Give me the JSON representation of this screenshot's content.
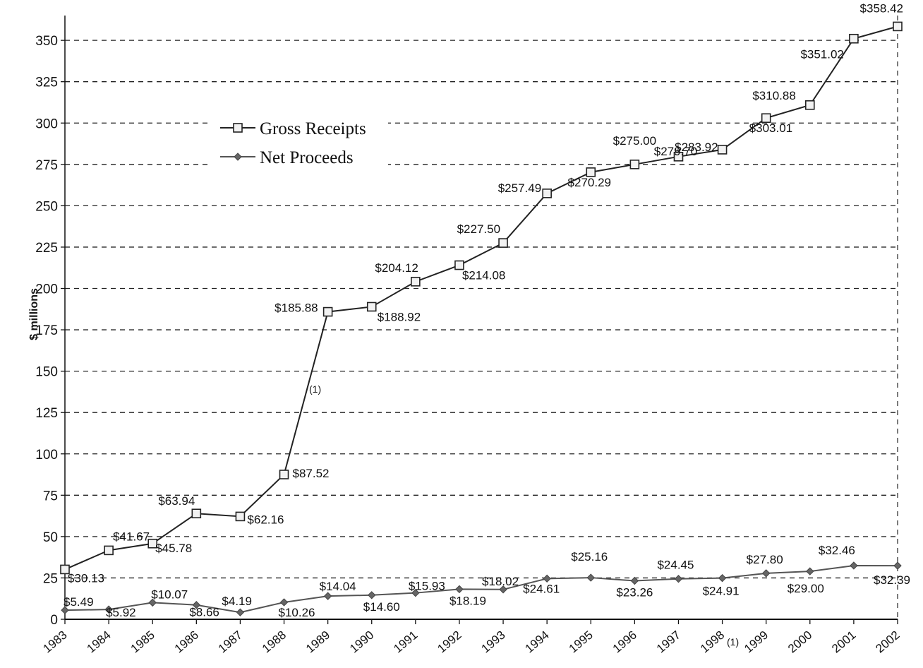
{
  "chart_data": {
    "type": "line",
    "ylabel": "$ millions",
    "ylim": [
      0,
      365
    ],
    "yticks": [
      "0",
      "25",
      "50",
      "75",
      "100",
      "125",
      "150",
      "175",
      "200",
      "225",
      "250",
      "275",
      "300",
      "325",
      "350"
    ],
    "grid": "horizontal dashed",
    "legend_position": "upper-left",
    "categories": [
      "1983",
      "1984",
      "1985",
      "1986",
      "1987",
      "1988",
      "1989",
      "1990",
      "1991",
      "1992",
      "1993",
      "1994",
      "1995",
      "1996",
      "1997",
      "1998",
      "1999",
      "2000",
      "2001",
      "2002"
    ],
    "series": [
      {
        "name": "Gross Receipts",
        "color": "#222222",
        "marker": "square",
        "values": [
          30.13,
          41.67,
          45.78,
          63.94,
          62.16,
          87.52,
          185.88,
          188.92,
          204.12,
          214.08,
          227.5,
          257.49,
          270.29,
          275.0,
          279.7,
          283.92,
          303.01,
          310.88,
          351.02,
          358.42
        ],
        "labels": [
          "$30.13",
          "$41.67",
          "$45.78",
          "$63.94",
          "$62.16",
          "$87.52",
          "$185.88",
          "$188.92",
          "$204.12",
          "$214.08",
          "$227.50",
          "$257.49",
          "$270.29",
          "$275.00",
          "$279.70",
          "$283.92",
          "$303.01",
          "$310.88",
          "$351.02",
          "$358.42"
        ]
      },
      {
        "name": "Net Proceeds",
        "color": "#555555",
        "marker": "diamond",
        "values": [
          5.49,
          5.92,
          10.07,
          8.66,
          4.19,
          10.26,
          14.04,
          14.6,
          15.93,
          18.19,
          18.02,
          24.61,
          25.16,
          23.26,
          24.45,
          24.91,
          27.8,
          29.0,
          32.46,
          32.39
        ],
        "labels": [
          "$5.49",
          "$5.92",
          "$10.07",
          "$8.66",
          "$4.19",
          "$10.26",
          "$14.04",
          "$14.60",
          "$15.93",
          "$18.19",
          "$18.02",
          "$24.61",
          "$25.16",
          "$23.26",
          "$24.45",
          "$24.91",
          "$27.80",
          "$29.00",
          "$32.46",
          "$32.39"
        ]
      }
    ],
    "annotations": [
      {
        "text": "(1)",
        "near_series": "Gross Receipts",
        "between": [
          "1988",
          "1989"
        ]
      },
      {
        "text": "(1)",
        "near": "x-axis",
        "between": [
          "1998",
          "1999"
        ]
      }
    ]
  }
}
